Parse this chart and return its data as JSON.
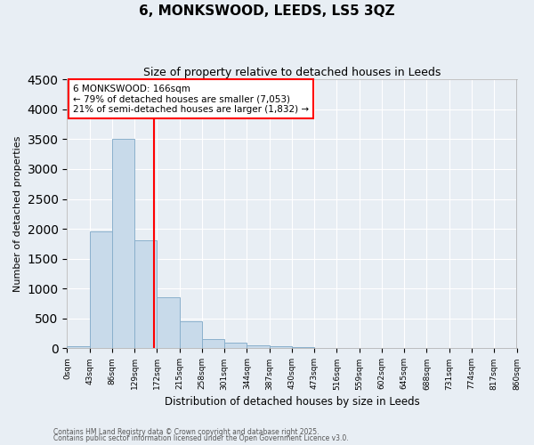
{
  "title": "6, MONKSWOOD, LEEDS, LS5 3QZ",
  "subtitle": "Size of property relative to detached houses in Leeds",
  "xlabel": "Distribution of detached houses by size in Leeds",
  "ylabel": "Number of detached properties",
  "bar_values": [
    30,
    1950,
    3500,
    1810,
    850,
    450,
    155,
    90,
    55,
    35,
    20,
    10,
    0,
    0,
    0,
    0,
    0,
    0,
    0,
    0
  ],
  "bin_labels": [
    "0sqm",
    "43sqm",
    "86sqm",
    "129sqm",
    "172sqm",
    "215sqm",
    "258sqm",
    "301sqm",
    "344sqm",
    "387sqm",
    "430sqm",
    "473sqm",
    "516sqm",
    "559sqm",
    "602sqm",
    "645sqm",
    "688sqm",
    "731sqm",
    "774sqm",
    "817sqm",
    "860sqm"
  ],
  "bar_color": "#c8daea",
  "bar_edgecolor": "#8ab0cc",
  "vline_color": "red",
  "ylim": [
    0,
    4500
  ],
  "annotation_text": "6 MONKSWOOD: 166sqm\n← 79% of detached houses are smaller (7,053)\n21% of semi-detached houses are larger (1,832) →",
  "footer1": "Contains HM Land Registry data © Crown copyright and database right 2025.",
  "footer2": "Contains public sector information licensed under the Open Government Licence v3.0.",
  "background_color": "#e8eef4",
  "plot_background": "#e8eef4",
  "grid_color": "white",
  "property_sqm": 166,
  "bin_size": 43
}
